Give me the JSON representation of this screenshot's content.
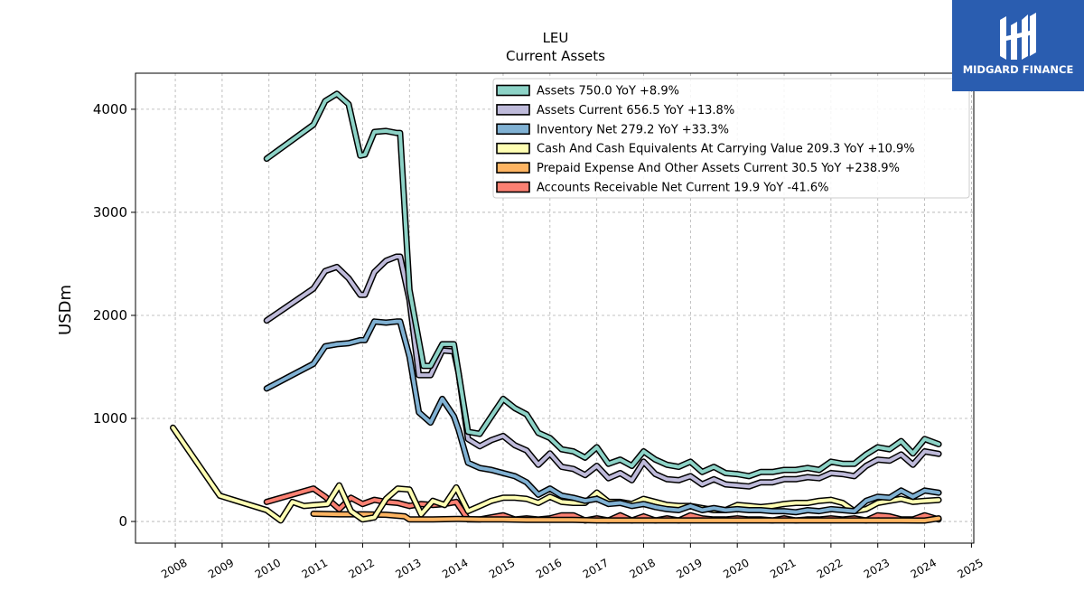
{
  "chart_data": {
    "type": "line",
    "title": "LEU",
    "subtitle": "Current  Assets",
    "xlabel": "",
    "ylabel": "USDm",
    "xlim": [
      2007.15,
      2025.05
    ],
    "ylim": [
      -210,
      4350
    ],
    "yticks": [
      0,
      1000,
      2000,
      3000,
      4000
    ],
    "xticks": [
      2008,
      2009,
      2010,
      2011,
      2012,
      2013,
      2014,
      2015,
      2016,
      2017,
      2018,
      2019,
      2020,
      2021,
      2022,
      2023,
      2024,
      2025
    ],
    "grid": true,
    "legend_position": "top-right",
    "series": [
      {
        "name": "Assets",
        "label": "Assets  750.0 YoY +8.9%",
        "color": "#8dd3c7",
        "x": [
          2009.95,
          2010.95,
          2011.2,
          2011.45,
          2011.7,
          2011.95,
          2012.05,
          2012.25,
          2012.5,
          2012.72,
          2012.8,
          2013.0,
          2013.3,
          2013.45,
          2013.7,
          2013.95,
          2014.05,
          2014.25,
          2014.5,
          2014.75,
          2015.0,
          2015.25,
          2015.5,
          2015.75,
          2016.0,
          2016.25,
          2016.5,
          2016.75,
          2017.0,
          2017.25,
          2017.5,
          2017.75,
          2018.0,
          2018.25,
          2018.5,
          2018.75,
          2019.0,
          2019.25,
          2019.5,
          2019.75,
          2020.0,
          2020.25,
          2020.5,
          2020.75,
          2021.0,
          2021.25,
          2021.5,
          2021.75,
          2022.0,
          2022.25,
          2022.5,
          2022.75,
          2023.0,
          2023.25,
          2023.5,
          2023.75,
          2024.0,
          2024.3
        ],
        "y": [
          3520,
          3850,
          4080,
          4150,
          4050,
          3550,
          3560,
          3780,
          3790,
          3770,
          3770,
          2250,
          1510,
          1510,
          1720,
          1720,
          1440,
          870,
          850,
          1020,
          1190,
          1100,
          1040,
          860,
          810,
          700,
          680,
          620,
          720,
          560,
          600,
          540,
          680,
          600,
          550,
          530,
          580,
          480,
          530,
          470,
          460,
          440,
          480,
          480,
          500,
          500,
          520,
          500,
          580,
          560,
          560,
          650,
          720,
          700,
          780,
          660,
          800,
          750
        ]
      },
      {
        "name": "Assets Current",
        "label": "Assets Current  656.5 YoY +13.8%",
        "color": "#bebada",
        "x": [
          2009.95,
          2010.95,
          2011.2,
          2011.45,
          2011.7,
          2011.95,
          2012.05,
          2012.25,
          2012.5,
          2012.72,
          2012.8,
          2013.0,
          2013.2,
          2013.45,
          2013.7,
          2013.95,
          2014.05,
          2014.25,
          2014.5,
          2014.75,
          2015.0,
          2015.25,
          2015.5,
          2015.75,
          2016.0,
          2016.25,
          2016.5,
          2016.75,
          2017.0,
          2017.25,
          2017.5,
          2017.75,
          2018.0,
          2018.25,
          2018.5,
          2018.75,
          2019.0,
          2019.25,
          2019.5,
          2019.75,
          2020.0,
          2020.25,
          2020.5,
          2020.75,
          2021.0,
          2021.25,
          2021.5,
          2021.75,
          2022.0,
          2022.25,
          2022.5,
          2022.75,
          2023.0,
          2023.25,
          2023.5,
          2023.75,
          2024.0,
          2024.3
        ],
        "y": [
          1950,
          2260,
          2430,
          2470,
          2360,
          2200,
          2200,
          2420,
          2530,
          2570,
          2570,
          2150,
          1420,
          1420,
          1660,
          1650,
          1440,
          800,
          730,
          790,
          830,
          740,
          690,
          550,
          660,
          530,
          510,
          450,
          540,
          420,
          470,
          400,
          580,
          460,
          410,
          400,
          440,
          360,
          410,
          360,
          350,
          340,
          380,
          380,
          410,
          410,
          430,
          420,
          470,
          460,
          440,
          540,
          600,
          590,
          650,
          550,
          680,
          656
        ]
      },
      {
        "name": "Inventory Net",
        "label": "Inventory Net  279.2 YoY +33.3%",
        "color": "#80b1d3",
        "x": [
          2009.95,
          2010.95,
          2011.2,
          2011.45,
          2011.7,
          2011.95,
          2012.05,
          2012.25,
          2012.5,
          2012.72,
          2012.8,
          2013.0,
          2013.2,
          2013.45,
          2013.7,
          2013.95,
          2014.05,
          2014.25,
          2014.5,
          2014.75,
          2015.0,
          2015.25,
          2015.5,
          2015.75,
          2016.0,
          2016.25,
          2016.5,
          2016.75,
          2017.0,
          2017.25,
          2017.5,
          2017.75,
          2018.0,
          2018.25,
          2018.5,
          2018.75,
          2019.0,
          2019.25,
          2019.5,
          2019.75,
          2020.0,
          2020.25,
          2020.5,
          2020.75,
          2021.0,
          2021.25,
          2021.5,
          2021.75,
          2022.0,
          2022.25,
          2022.5,
          2022.75,
          2023.0,
          2023.25,
          2023.5,
          2023.75,
          2024.0,
          2024.3
        ],
        "y": [
          1290,
          1530,
          1700,
          1720,
          1730,
          1760,
          1760,
          1940,
          1930,
          1940,
          1940,
          1600,
          1060,
          960,
          1190,
          1020,
          890,
          570,
          520,
          500,
          470,
          440,
          380,
          260,
          320,
          250,
          230,
          200,
          220,
          170,
          180,
          150,
          170,
          140,
          120,
          110,
          150,
          110,
          130,
          110,
          120,
          110,
          110,
          100,
          100,
          90,
          110,
          100,
          120,
          110,
          100,
          200,
          240,
          230,
          300,
          240,
          300,
          279
        ]
      },
      {
        "name": "Cash And Cash Equivalents At Carrying Value",
        "label": "Cash And Cash Equivalents At Carrying Value  209.3 YoY +10.9%",
        "color": "#ffffb3",
        "x": [
          2007.95,
          2008.95,
          2009.95,
          2010.25,
          2010.5,
          2010.75,
          2011.0,
          2011.25,
          2011.5,
          2011.75,
          2012.0,
          2012.25,
          2012.5,
          2012.75,
          2013.0,
          2013.25,
          2013.5,
          2013.75,
          2014.0,
          2014.25,
          2014.5,
          2014.75,
          2015.0,
          2015.25,
          2015.5,
          2015.75,
          2016.0,
          2016.25,
          2016.5,
          2016.75,
          2017.0,
          2017.25,
          2017.5,
          2017.75,
          2018.0,
          2018.25,
          2018.5,
          2018.75,
          2019.0,
          2019.25,
          2019.5,
          2019.75,
          2020.0,
          2020.25,
          2020.5,
          2020.75,
          2021.0,
          2021.25,
          2021.5,
          2021.75,
          2022.0,
          2022.25,
          2022.5,
          2022.75,
          2023.0,
          2023.25,
          2023.5,
          2023.75,
          2024.0,
          2024.3
        ],
        "y": [
          910,
          250,
          110,
          10,
          190,
          150,
          160,
          170,
          350,
          100,
          20,
          40,
          220,
          320,
          310,
          70,
          200,
          160,
          330,
          100,
          150,
          200,
          230,
          230,
          220,
          180,
          240,
          190,
          180,
          180,
          280,
          190,
          190,
          170,
          220,
          190,
          160,
          150,
          150,
          130,
          110,
          110,
          160,
          150,
          140,
          150,
          170,
          180,
          180,
          200,
          210,
          180,
          100,
          120,
          180,
          200,
          220,
          190,
          200,
          209
        ]
      },
      {
        "name": "Prepaid Expense And Other Assets Current",
        "label": "Prepaid Expense And Other Assets Current  30.5 YoY +238.9%",
        "color": "#fdb462",
        "x": [
          2010.95,
          2011.5,
          2012.0,
          2012.5,
          2012.9,
          2013.0,
          2013.5,
          2014.0,
          2014.5,
          2015.0,
          2015.5,
          2016.0,
          2016.5,
          2017.0,
          2017.5,
          2018.0,
          2018.5,
          2019.0,
          2019.5,
          2020.0,
          2020.5,
          2021.0,
          2021.5,
          2022.0,
          2022.5,
          2023.0,
          2023.5,
          2024.0,
          2024.3
        ],
        "y": [
          75,
          70,
          70,
          65,
          50,
          20,
          20,
          25,
          20,
          20,
          15,
          15,
          15,
          10,
          10,
          10,
          10,
          10,
          10,
          10,
          10,
          10,
          10,
          10,
          10,
          10,
          10,
          9,
          30.5
        ]
      },
      {
        "name": "Accounts Receivable Net Current",
        "label": "Accounts Receivable Net Current  19.9 YoY -41.6%",
        "color": "#fb8072",
        "x": [
          2009.95,
          2010.95,
          2011.2,
          2011.5,
          2011.75,
          2012.0,
          2012.25,
          2012.5,
          2012.75,
          2013.0,
          2013.25,
          2013.5,
          2013.75,
          2014.0,
          2014.25,
          2014.5,
          2014.75,
          2015.0,
          2015.25,
          2015.5,
          2015.75,
          2016.0,
          2016.25,
          2016.5,
          2016.75,
          2017.0,
          2017.25,
          2017.5,
          2017.75,
          2018.0,
          2018.25,
          2018.5,
          2018.75,
          2019.0,
          2019.25,
          2019.5,
          2019.75,
          2020.0,
          2020.25,
          2020.5,
          2020.75,
          2021.0,
          2021.25,
          2021.5,
          2021.75,
          2022.0,
          2022.25,
          2022.5,
          2022.75,
          2023.0,
          2023.25,
          2023.5,
          2023.75,
          2024.0,
          2024.3
        ],
        "y": [
          190,
          320,
          240,
          120,
          230,
          170,
          210,
          190,
          180,
          150,
          170,
          160,
          170,
          190,
          20,
          20,
          40,
          60,
          20,
          30,
          20,
          30,
          60,
          60,
          10,
          30,
          10,
          60,
          10,
          50,
          10,
          30,
          10,
          60,
          30,
          20,
          20,
          30,
          20,
          20,
          10,
          30,
          10,
          20,
          20,
          30,
          20,
          30,
          10,
          60,
          50,
          20,
          20,
          60,
          20
        ]
      }
    ]
  },
  "logo": {
    "text": "MIDGARD FINANCE",
    "background": "#2a5db0"
  }
}
